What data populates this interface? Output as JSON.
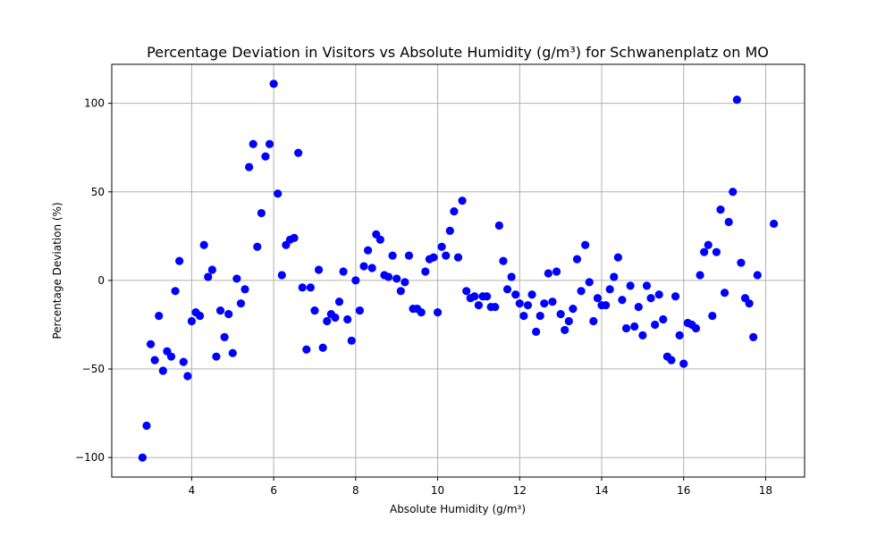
{
  "chart_data": {
    "type": "scatter",
    "title": "Percentage Deviation in Visitors vs Absolute Humidity (g/m³) for Schwanenplatz on MO",
    "xlabel": "Absolute Humidity (g/m³)",
    "ylabel": "Percentage Deviation (%)",
    "xlim": [
      2.05,
      18.95
    ],
    "ylim": [
      -111,
      122
    ],
    "xticks": [
      4,
      6,
      8,
      10,
      12,
      14,
      16,
      18
    ],
    "yticks": [
      -100,
      -50,
      0,
      50,
      100
    ],
    "grid": true,
    "marker_color": "#0000ff",
    "points": [
      [
        2.8,
        -100
      ],
      [
        2.9,
        -82
      ],
      [
        3.0,
        -36
      ],
      [
        3.1,
        -45
      ],
      [
        3.2,
        -20
      ],
      [
        3.3,
        -51
      ],
      [
        3.4,
        -40
      ],
      [
        3.5,
        -43
      ],
      [
        3.6,
        -6
      ],
      [
        3.7,
        11
      ],
      [
        3.8,
        -46
      ],
      [
        3.9,
        -54
      ],
      [
        4.0,
        -23
      ],
      [
        4.1,
        -18
      ],
      [
        4.2,
        -20
      ],
      [
        4.3,
        20
      ],
      [
        4.4,
        2
      ],
      [
        4.5,
        6
      ],
      [
        4.6,
        -43
      ],
      [
        4.7,
        -17
      ],
      [
        4.8,
        -32
      ],
      [
        4.9,
        -19
      ],
      [
        5.0,
        -41
      ],
      [
        5.1,
        1
      ],
      [
        5.2,
        -13
      ],
      [
        5.3,
        -5
      ],
      [
        5.4,
        64
      ],
      [
        5.5,
        77
      ],
      [
        5.6,
        19
      ],
      [
        5.7,
        38
      ],
      [
        5.8,
        70
      ],
      [
        5.9,
        77
      ],
      [
        6.0,
        111
      ],
      [
        6.1,
        49
      ],
      [
        6.2,
        3
      ],
      [
        6.3,
        20
      ],
      [
        6.4,
        23
      ],
      [
        6.5,
        24
      ],
      [
        6.6,
        72
      ],
      [
        6.7,
        -4
      ],
      [
        6.8,
        -39
      ],
      [
        6.9,
        -4
      ],
      [
        7.0,
        -17
      ],
      [
        7.1,
        6
      ],
      [
        7.2,
        -38
      ],
      [
        7.3,
        -23
      ],
      [
        7.4,
        -19
      ],
      [
        7.5,
        -21
      ],
      [
        7.6,
        -12
      ],
      [
        7.7,
        5
      ],
      [
        7.8,
        -22
      ],
      [
        7.9,
        -34
      ],
      [
        8.0,
        0
      ],
      [
        8.1,
        -17
      ],
      [
        8.2,
        8
      ],
      [
        8.3,
        17
      ],
      [
        8.4,
        7
      ],
      [
        8.5,
        26
      ],
      [
        8.6,
        23
      ],
      [
        8.7,
        3
      ],
      [
        8.8,
        2
      ],
      [
        8.9,
        14
      ],
      [
        9.0,
        1
      ],
      [
        9.1,
        -6
      ],
      [
        9.2,
        -1
      ],
      [
        9.3,
        14
      ],
      [
        9.4,
        -16
      ],
      [
        9.5,
        -16
      ],
      [
        9.6,
        -18
      ],
      [
        9.7,
        5
      ],
      [
        9.8,
        12
      ],
      [
        9.9,
        13
      ],
      [
        10.0,
        -18
      ],
      [
        10.1,
        19
      ],
      [
        10.2,
        14
      ],
      [
        10.3,
        28
      ],
      [
        10.4,
        39
      ],
      [
        10.5,
        13
      ],
      [
        10.6,
        45
      ],
      [
        10.7,
        -6
      ],
      [
        10.8,
        -10
      ],
      [
        10.9,
        -9
      ],
      [
        11.0,
        -14
      ],
      [
        11.1,
        -9
      ],
      [
        11.2,
        -9
      ],
      [
        11.3,
        -15
      ],
      [
        11.4,
        -15
      ],
      [
        11.5,
        31
      ],
      [
        11.6,
        11
      ],
      [
        11.7,
        -5
      ],
      [
        11.8,
        2
      ],
      [
        11.9,
        -8
      ],
      [
        12.0,
        -13
      ],
      [
        12.1,
        -20
      ],
      [
        12.2,
        -14
      ],
      [
        12.3,
        -8
      ],
      [
        12.4,
        -29
      ],
      [
        12.5,
        -20
      ],
      [
        12.6,
        -13
      ],
      [
        12.7,
        4
      ],
      [
        12.8,
        -12
      ],
      [
        12.9,
        5
      ],
      [
        13.0,
        -19
      ],
      [
        13.1,
        -28
      ],
      [
        13.2,
        -23
      ],
      [
        13.3,
        -16
      ],
      [
        13.4,
        12
      ],
      [
        13.5,
        -6
      ],
      [
        13.6,
        20
      ],
      [
        13.7,
        -1
      ],
      [
        13.8,
        -23
      ],
      [
        13.9,
        -10
      ],
      [
        14.0,
        -14
      ],
      [
        14.1,
        -14
      ],
      [
        14.2,
        -5
      ],
      [
        14.3,
        2
      ],
      [
        14.4,
        13
      ],
      [
        14.5,
        -11
      ],
      [
        14.6,
        -27
      ],
      [
        14.7,
        -3
      ],
      [
        14.8,
        -26
      ],
      [
        14.9,
        -15
      ],
      [
        15.0,
        -31
      ],
      [
        15.1,
        -3
      ],
      [
        15.2,
        -10
      ],
      [
        15.3,
        -25
      ],
      [
        15.4,
        -8
      ],
      [
        15.5,
        -22
      ],
      [
        15.6,
        -43
      ],
      [
        15.7,
        -45
      ],
      [
        15.8,
        -9
      ],
      [
        15.9,
        -31
      ],
      [
        16.0,
        -47
      ],
      [
        16.1,
        -24
      ],
      [
        16.2,
        -25
      ],
      [
        16.3,
        -27
      ],
      [
        16.4,
        3
      ],
      [
        16.5,
        16
      ],
      [
        16.6,
        20
      ],
      [
        16.7,
        -20
      ],
      [
        16.8,
        16
      ],
      [
        16.9,
        40
      ],
      [
        17.0,
        -7
      ],
      [
        17.1,
        33
      ],
      [
        17.2,
        50
      ],
      [
        17.3,
        102
      ],
      [
        17.4,
        10
      ],
      [
        17.5,
        -10
      ],
      [
        17.6,
        -13
      ],
      [
        17.7,
        -32
      ],
      [
        17.8,
        3
      ],
      [
        18.2,
        32
      ]
    ]
  }
}
